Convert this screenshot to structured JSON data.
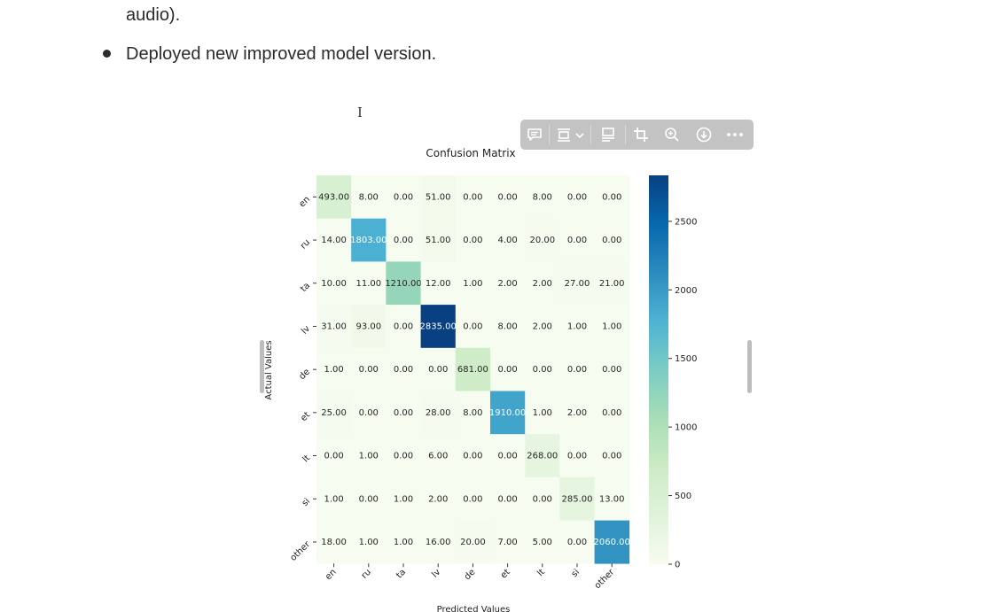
{
  "document": {
    "prev_line": "audio).",
    "bullet_text": "Deployed new improved model version."
  },
  "toolbar": {
    "buttons": [
      {
        "icon": "comment-icon"
      },
      {
        "icon": "frame-align-icon"
      },
      {
        "icon": "caption-icon"
      },
      {
        "icon": "crop-icon"
      },
      {
        "icon": "zoom-in-icon"
      },
      {
        "icon": "download-icon"
      },
      {
        "icon": "more-icon"
      }
    ]
  },
  "chart_data": {
    "type": "heatmap",
    "title": "Confusion Matrix",
    "xlabel": "Predicted Values",
    "ylabel": "Actual Values",
    "labels": [
      "en",
      "ru",
      "ta",
      "lv",
      "de",
      "et",
      "lt",
      "si",
      "other"
    ],
    "matrix": [
      [
        493.0,
        8.0,
        0.0,
        51.0,
        0.0,
        0.0,
        8.0,
        0.0,
        0.0
      ],
      [
        14.0,
        1803.0,
        0.0,
        51.0,
        0.0,
        4.0,
        20.0,
        0.0,
        0.0
      ],
      [
        10.0,
        11.0,
        1210.0,
        12.0,
        1.0,
        2.0,
        2.0,
        27.0,
        21.0
      ],
      [
        31.0,
        93.0,
        0.0,
        2835.0,
        0.0,
        8.0,
        2.0,
        1.0,
        1.0
      ],
      [
        1.0,
        0.0,
        0.0,
        0.0,
        681.0,
        0.0,
        0.0,
        0.0,
        0.0
      ],
      [
        25.0,
        0.0,
        0.0,
        28.0,
        8.0,
        1910.0,
        1.0,
        2.0,
        0.0
      ],
      [
        0.0,
        1.0,
        0.0,
        6.0,
        0.0,
        0.0,
        268.0,
        0.0,
        0.0
      ],
      [
        1.0,
        0.0,
        1.0,
        2.0,
        0.0,
        0.0,
        0.0,
        285.0,
        13.0
      ],
      [
        18.0,
        1.0,
        1.0,
        16.0,
        20.0,
        7.0,
        5.0,
        0.0,
        2060.0
      ]
    ],
    "colorbar": {
      "min": 0,
      "max": 2835,
      "ticks": [
        0,
        500,
        1000,
        1500,
        2000,
        2500
      ],
      "colormap": "GnBu"
    }
  }
}
